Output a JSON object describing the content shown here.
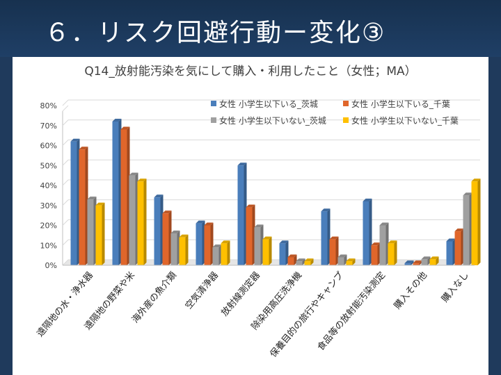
{
  "slide": {
    "title": "６．リスク回避行動ー変化③"
  },
  "chart_data": {
    "type": "bar",
    "title": "Q14_放射能汚染を気にして購入・利用したこと（女性；MA）",
    "xlabel": "",
    "ylabel": "",
    "ylim": [
      0,
      80
    ],
    "yticks": [
      "0%",
      "10%",
      "20%",
      "30%",
      "40%",
      "50%",
      "60%",
      "70%",
      "80%"
    ],
    "grid": true,
    "legend_position": "top-right",
    "categories": [
      "遠隔地の水・浄水器",
      "遠隔地の野菜や米",
      "海外産の魚介類",
      "空気清浄器",
      "放射線測定器",
      "除染用高圧洗浄機",
      "保養目的の旅行やキャンプ",
      "食品等の放射能汚染測定",
      "購入その他",
      "購入なし"
    ],
    "series": [
      {
        "name": "女性 小学生以下いる_茨城",
        "color": "#4a7ebb",
        "values": [
          62,
          72,
          34,
          21,
          50,
          11,
          27,
          32,
          1,
          12
        ]
      },
      {
        "name": "女性 小学生以下いる_千葉",
        "color": "#e0662b",
        "values": [
          58,
          68,
          26,
          20,
          29,
          4,
          13,
          10,
          1,
          17
        ]
      },
      {
        "name": "女性 小学生以下いない_茨城",
        "color": "#a0a0a0",
        "values": [
          33,
          45,
          16,
          9,
          19,
          2,
          4,
          20,
          3,
          35
        ]
      },
      {
        "name": "女性 小学生以下いない_千葉",
        "color": "#ffc000",
        "values": [
          30,
          42,
          14,
          11,
          13,
          2,
          2,
          11,
          3,
          42
        ]
      }
    ]
  }
}
